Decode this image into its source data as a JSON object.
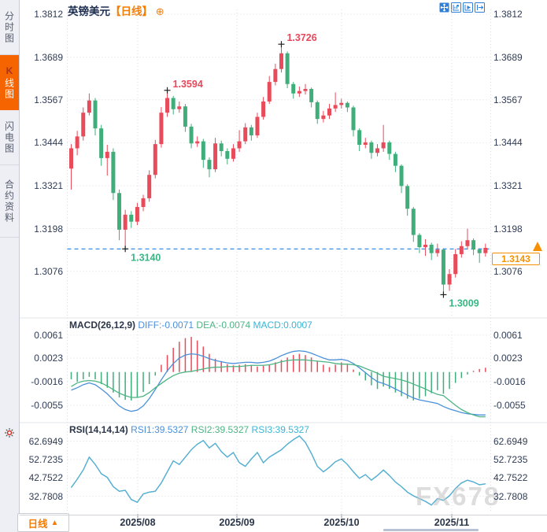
{
  "app": {
    "symbol": "英镑美元",
    "period_tag": "【日线】",
    "expand_icon": "⊕"
  },
  "sidebar": {
    "items": [
      {
        "label": "分时图"
      },
      {
        "label_k": "K",
        "label_rest": "线图"
      },
      {
        "label": "闪电图"
      },
      {
        "label": "合约资料"
      }
    ]
  },
  "toolbar": {
    "icons": [
      "pan-tool",
      "axis-scale",
      "auto-play",
      "jump-latest"
    ]
  },
  "period_button": {
    "label": "日线",
    "arrow": "▲"
  },
  "price_marker": {
    "value": "1.3143"
  },
  "watermark": "FX678",
  "colors": {
    "up": "#e84b5a",
    "down": "#3fae7a",
    "dashed_line": "#1e80e8",
    "accent_orange": "#f57c00",
    "diff_line": "#4a90d9",
    "dea_line": "#4cb583",
    "macd_cyan": "#38b6d4",
    "rsi_line": "#54b0da",
    "ann_high": "#e8475a",
    "ann_low": "#35b883",
    "grid": "#d9dce3"
  },
  "chart_data": [
    {
      "type": "candlestick",
      "title": "英镑美元 日线",
      "y_ticks": [
        "1.3812",
        "1.3689",
        "1.3567",
        "1.3444",
        "1.3321",
        "1.3198",
        "1.3076"
      ],
      "x_ticks": [
        "2025/08",
        "2025/09",
        "2025/10",
        "2025/11"
      ],
      "ylim": [
        1.3009,
        1.3812
      ],
      "current_price": 1.3143,
      "dashed_line_price": 1.314,
      "annotations": [
        {
          "label": "1.3594",
          "index": 16,
          "price": 1.3594,
          "kind": "high"
        },
        {
          "label": "1.3726",
          "index": 35,
          "price": 1.3726,
          "kind": "high"
        },
        {
          "label": "1.3140",
          "index": 9,
          "price": 1.314,
          "kind": "low"
        },
        {
          "label": "1.3009",
          "index": 62,
          "price": 1.3009,
          "kind": "low"
        }
      ],
      "ohlc": [
        [
          1.337,
          1.344,
          1.331,
          1.3428
        ],
        [
          1.3428,
          1.3478,
          1.3408,
          1.3462
        ],
        [
          1.3462,
          1.3545,
          1.345,
          1.353
        ],
        [
          1.353,
          1.3585,
          1.3522,
          1.3565
        ],
        [
          1.3565,
          1.3572,
          1.3465,
          1.3485
        ],
        [
          1.3485,
          1.3495,
          1.3378,
          1.34
        ],
        [
          1.34,
          1.3438,
          1.335,
          1.3418
        ],
        [
          1.3418,
          1.3428,
          1.328,
          1.33
        ],
        [
          1.33,
          1.331,
          1.3165,
          1.3195
        ],
        [
          1.3195,
          1.3252,
          1.314,
          1.3238
        ],
        [
          1.3238,
          1.3248,
          1.32,
          1.3218
        ],
        [
          1.3218,
          1.3272,
          1.3208,
          1.326
        ],
        [
          1.326,
          1.3295,
          1.3248,
          1.3285
        ],
        [
          1.3285,
          1.3365,
          1.3275,
          1.3352
        ],
        [
          1.3352,
          1.3452,
          1.3342,
          1.344
        ],
        [
          1.344,
          1.3546,
          1.343,
          1.353
        ],
        [
          1.353,
          1.3594,
          1.3518,
          1.3572
        ],
        [
          1.3572,
          1.3578,
          1.3525,
          1.354
        ],
        [
          1.354,
          1.3562,
          1.353,
          1.3548
        ],
        [
          1.3548,
          1.3555,
          1.3475,
          1.349
        ],
        [
          1.349,
          1.3498,
          1.3428,
          1.3442
        ],
        [
          1.3442,
          1.3462,
          1.3432,
          1.3448
        ],
        [
          1.3448,
          1.3455,
          1.3372,
          1.3395
        ],
        [
          1.3395,
          1.3402,
          1.3345,
          1.3368
        ],
        [
          1.3368,
          1.3458,
          1.336,
          1.3442
        ],
        [
          1.3442,
          1.345,
          1.3405,
          1.342
        ],
        [
          1.342,
          1.3428,
          1.3382,
          1.3398
        ],
        [
          1.3398,
          1.344,
          1.339,
          1.3428
        ],
        [
          1.3428,
          1.348,
          1.3418,
          1.3448
        ],
        [
          1.3448,
          1.35,
          1.344,
          1.3488
        ],
        [
          1.3488,
          1.3495,
          1.345,
          1.3465
        ],
        [
          1.3465,
          1.353,
          1.3458,
          1.3518
        ],
        [
          1.3518,
          1.3575,
          1.351,
          1.3562
        ],
        [
          1.3562,
          1.3635,
          1.3555,
          1.3618
        ],
        [
          1.3618,
          1.367,
          1.3608,
          1.3655
        ],
        [
          1.3655,
          1.3726,
          1.3645,
          1.37
        ],
        [
          1.37,
          1.3705,
          1.36,
          1.3612
        ],
        [
          1.3612,
          1.3618,
          1.357,
          1.3585
        ],
        [
          1.3585,
          1.3605,
          1.3575,
          1.3592
        ],
        [
          1.3592,
          1.3612,
          1.3582,
          1.3598
        ],
        [
          1.3598,
          1.3602,
          1.3545,
          1.356
        ],
        [
          1.356,
          1.3565,
          1.3498,
          1.3512
        ],
        [
          1.3512,
          1.3535,
          1.3502,
          1.3522
        ],
        [
          1.3522,
          1.3555,
          1.3512,
          1.3542
        ],
        [
          1.3542,
          1.3588,
          1.3532,
          1.3552
        ],
        [
          1.3552,
          1.357,
          1.3542,
          1.3558
        ],
        [
          1.3558,
          1.3562,
          1.3532,
          1.3545
        ],
        [
          1.3545,
          1.355,
          1.3462,
          1.348
        ],
        [
          1.348,
          1.3485,
          1.342,
          1.3438
        ],
        [
          1.3438,
          1.3458,
          1.3428,
          1.3445
        ],
        [
          1.3445,
          1.345,
          1.3398,
          1.3415
        ],
        [
          1.3415,
          1.344,
          1.3405,
          1.3428
        ],
        [
          1.3428,
          1.3495,
          1.3418,
          1.3445
        ],
        [
          1.3445,
          1.345,
          1.3395,
          1.3412
        ],
        [
          1.3412,
          1.3418,
          1.336,
          1.3378
        ],
        [
          1.3378,
          1.3382,
          1.33,
          1.332
        ],
        [
          1.332,
          1.3325,
          1.3235,
          1.3255
        ],
        [
          1.3255,
          1.326,
          1.316,
          1.318
        ],
        [
          1.318,
          1.3185,
          1.3128,
          1.3145
        ],
        [
          1.3145,
          1.3168,
          1.312,
          1.3152
        ],
        [
          1.3152,
          1.3158,
          1.3108,
          1.3128
        ],
        [
          1.3128,
          1.3155,
          1.3118,
          1.3138
        ],
        [
          1.3138,
          1.3142,
          1.3009,
          1.3038
        ],
        [
          1.3038,
          1.3082,
          1.302,
          1.3068
        ],
        [
          1.3068,
          1.314,
          1.3058,
          1.3125
        ],
        [
          1.3125,
          1.3162,
          1.3115,
          1.3148
        ],
        [
          1.3148,
          1.3198,
          1.3138,
          1.3165
        ],
        [
          1.3165,
          1.317,
          1.3122,
          1.3138
        ],
        [
          1.3138,
          1.3142,
          1.31,
          1.3128
        ],
        [
          1.3128,
          1.3155,
          1.3118,
          1.3143
        ]
      ]
    },
    {
      "type": "macd",
      "label": "MACD(26,12,9)",
      "diff_label": "DIFF:-0.0071",
      "dea_label": "DEA:-0.0074",
      "macd_label": "MACD:0.0007",
      "y_ticks": [
        "0.0061",
        "0.0023",
        "-0.0016",
        "-0.0055"
      ],
      "diff": [
        -0.003,
        -0.0026,
        -0.0021,
        -0.0018,
        -0.0021,
        -0.0028,
        -0.0036,
        -0.0046,
        -0.0056,
        -0.0062,
        -0.0065,
        -0.0063,
        -0.0056,
        -0.0044,
        -0.0029,
        -0.0013,
        0.0002,
        0.0014,
        0.0023,
        0.0028,
        0.003,
        0.0029,
        0.0026,
        0.0022,
        0.0019,
        0.0017,
        0.0015,
        0.0014,
        0.0015,
        0.0016,
        0.0016,
        0.0015,
        0.0016,
        0.0018,
        0.0022,
        0.0027,
        0.0031,
        0.0034,
        0.0035,
        0.0034,
        0.0031,
        0.0027,
        0.0023,
        0.002,
        0.002,
        0.0021,
        0.0019,
        0.0014,
        0.0007,
        -0.0001,
        -0.0009,
        -0.0016,
        -0.0019,
        -0.0023,
        -0.0028,
        -0.0033,
        -0.0038,
        -0.0043,
        -0.0046,
        -0.0048,
        -0.005,
        -0.0052,
        -0.0057,
        -0.0061,
        -0.0064,
        -0.0067,
        -0.0069,
        -0.007,
        -0.0071,
        -0.0071
      ],
      "dea": [
        -0.0024,
        -0.0018,
        -0.0015,
        -0.0014,
        -0.0015,
        -0.0018,
        -0.0023,
        -0.0029,
        -0.0035,
        -0.0039,
        -0.0042,
        -0.0042,
        -0.004,
        -0.0034,
        -0.0026,
        -0.0019,
        -0.0012,
        -0.0006,
        -0.0002,
        0.0,
        0.0001,
        0.0003,
        0.0005,
        0.0007,
        0.0008,
        0.0008,
        0.0009,
        0.0009,
        0.0009,
        0.001,
        0.0011,
        0.0011,
        0.0011,
        0.0012,
        0.0014,
        0.0017,
        0.0019,
        0.002,
        0.002,
        0.002,
        0.0019,
        0.0018,
        0.0017,
        0.0016,
        0.0014,
        0.0013,
        0.0013,
        0.0012,
        0.001,
        0.0006,
        0.0002,
        -0.0002,
        -0.0007,
        -0.0009,
        -0.0011,
        -0.0013,
        -0.0016,
        -0.002,
        -0.0024,
        -0.0028,
        -0.0033,
        -0.0037,
        -0.0039,
        -0.0047,
        -0.0055,
        -0.0062,
        -0.0067,
        -0.0071,
        -0.0074,
        -0.0074
      ],
      "hist": [
        -0.0012,
        -0.0016,
        -0.0012,
        -0.0008,
        -0.0012,
        -0.002,
        -0.0026,
        -0.0034,
        -0.0042,
        -0.0046,
        -0.0047,
        -0.0042,
        -0.0033,
        -0.002,
        -0.0006,
        0.0012,
        0.0028,
        0.004,
        0.005,
        0.0056,
        0.0058,
        0.0052,
        0.0042,
        0.003,
        0.0022,
        0.0018,
        0.0013,
        0.0011,
        0.0012,
        0.0013,
        0.0011,
        0.0009,
        0.001,
        0.0012,
        0.0016,
        0.002,
        0.0024,
        0.0028,
        0.003,
        0.0028,
        0.0024,
        0.0018,
        0.0012,
        0.0008,
        0.0012,
        0.0016,
        0.0012,
        0.0004,
        -0.0006,
        -0.0014,
        -0.0022,
        -0.0028,
        -0.0024,
        -0.0028,
        -0.0034,
        -0.004,
        -0.0044,
        -0.0047,
        -0.0044,
        -0.004,
        -0.0035,
        -0.003,
        -0.0036,
        -0.0028,
        -0.0018,
        -0.001,
        -0.0004,
        0.0002,
        0.0005,
        0.0007
      ]
    },
    {
      "type": "line",
      "label": "RSI(14,14,14)",
      "rsi1_label": "RSI1:39.5327",
      "rsi2_label": "RSI2:39.5327",
      "rsi3_label": "RSI3:39.5327",
      "y_ticks": [
        "62.6949",
        "52.7235",
        "42.7522",
        "32.7808"
      ],
      "values": [
        37.5,
        42,
        47,
        54,
        50,
        45,
        43,
        38,
        35.5,
        36,
        31,
        29.5,
        34,
        35,
        35.5,
        40,
        46,
        52,
        50,
        54,
        58,
        61,
        63,
        59,
        61.5,
        57,
        54,
        56.5,
        51,
        49,
        53,
        56.5,
        51,
        54,
        56,
        58,
        61,
        63.5,
        65.5,
        62,
        56,
        49,
        46,
        48.5,
        51.5,
        53,
        50,
        46,
        42.5,
        44.5,
        41.5,
        44,
        47,
        44,
        40.5,
        38,
        35,
        33,
        31.5,
        30,
        28,
        31.5,
        30.5,
        33,
        37,
        40,
        41.5,
        40.5,
        39,
        39.5
      ]
    }
  ]
}
